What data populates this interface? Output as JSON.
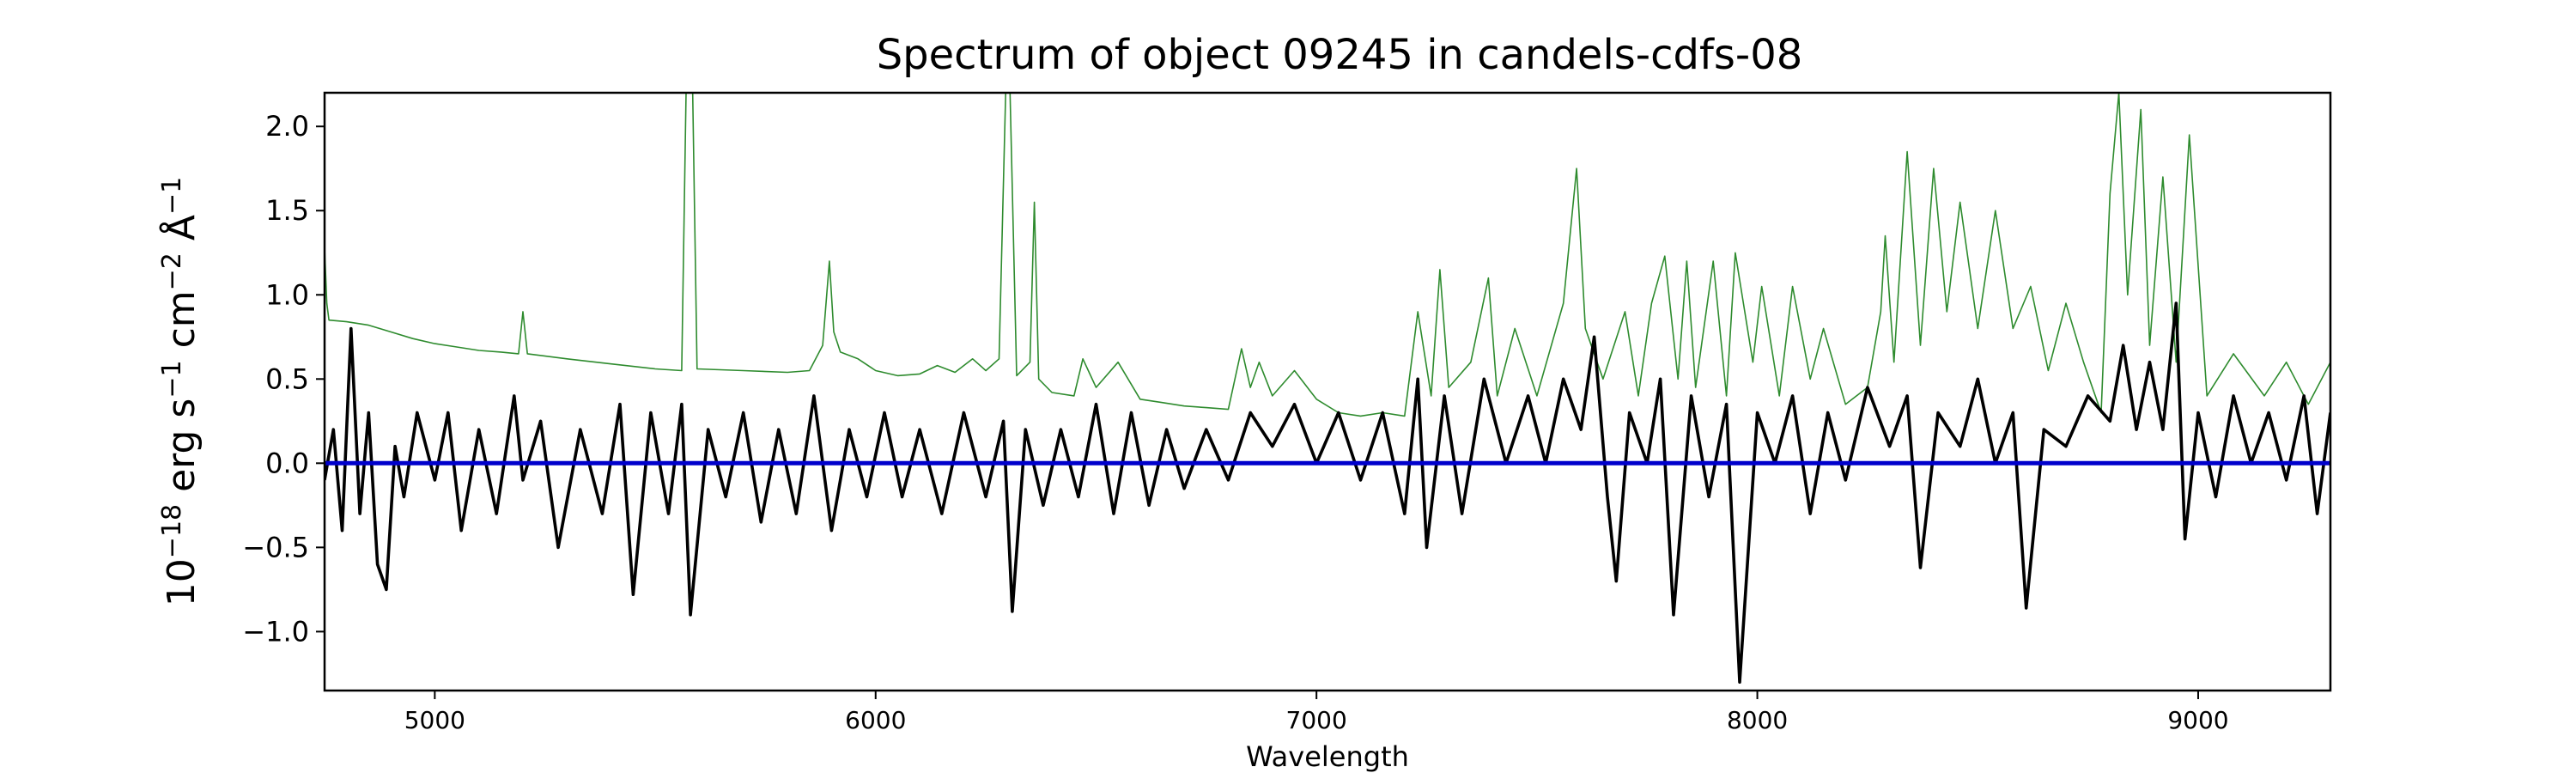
{
  "chart_data": {
    "type": "line",
    "title": "Spectrum of object 09245 in candels-cdfs-08",
    "xlabel": "Wavelength",
    "ylabel_parts": {
      "pre": "10",
      "pre_exp": "−18",
      "u1": " erg s",
      "u1_exp": "−1",
      "u2": " cm",
      "u2_exp": "−2",
      "u3": " Å",
      "u3_exp": "−1"
    },
    "xlim": [
      4750,
      9300
    ],
    "ylim": [
      -1.35,
      2.2
    ],
    "x_ticks": [
      {
        "value": 5000,
        "label": "5000"
      },
      {
        "value": 6000,
        "label": "6000"
      },
      {
        "value": 7000,
        "label": "7000"
      },
      {
        "value": 8000,
        "label": "8000"
      },
      {
        "value": 9000,
        "label": "9000"
      }
    ],
    "y_ticks": [
      {
        "value": -1.0,
        "label": "−1.0"
      },
      {
        "value": -0.5,
        "label": "−0.5"
      },
      {
        "value": 0.0,
        "label": "0.0"
      },
      {
        "value": 0.5,
        "label": "0.5"
      },
      {
        "value": 1.0,
        "label": "1.0"
      },
      {
        "value": 1.5,
        "label": "1.5"
      },
      {
        "value": 2.0,
        "label": "2.0"
      }
    ],
    "grid": false,
    "series": [
      {
        "role": "error",
        "color": "#2e8b2e",
        "points": [
          [
            4750,
            1.28
          ],
          [
            4755,
            0.95
          ],
          [
            4760,
            0.85
          ],
          [
            4800,
            0.84
          ],
          [
            4850,
            0.82
          ],
          [
            4900,
            0.78
          ],
          [
            4950,
            0.74
          ],
          [
            5000,
            0.71
          ],
          [
            5050,
            0.69
          ],
          [
            5100,
            0.67
          ],
          [
            5150,
            0.66
          ],
          [
            5190,
            0.65
          ],
          [
            5200,
            0.9
          ],
          [
            5210,
            0.65
          ],
          [
            5300,
            0.62
          ],
          [
            5400,
            0.59
          ],
          [
            5500,
            0.56
          ],
          [
            5560,
            0.55
          ],
          [
            5570,
            2.2
          ],
          [
            5585,
            2.2
          ],
          [
            5595,
            0.56
          ],
          [
            5700,
            0.55
          ],
          [
            5800,
            0.54
          ],
          [
            5850,
            0.55
          ],
          [
            5880,
            0.7
          ],
          [
            5895,
            1.2
          ],
          [
            5905,
            0.78
          ],
          [
            5920,
            0.66
          ],
          [
            5960,
            0.62
          ],
          [
            6000,
            0.55
          ],
          [
            6050,
            0.52
          ],
          [
            6100,
            0.53
          ],
          [
            6140,
            0.58
          ],
          [
            6180,
            0.54
          ],
          [
            6220,
            0.62
          ],
          [
            6250,
            0.55
          ],
          [
            6280,
            0.62
          ],
          [
            6295,
            2.2
          ],
          [
            6305,
            2.2
          ],
          [
            6320,
            0.52
          ],
          [
            6350,
            0.6
          ],
          [
            6360,
            1.55
          ],
          [
            6370,
            0.5
          ],
          [
            6400,
            0.42
          ],
          [
            6450,
            0.4
          ],
          [
            6470,
            0.62
          ],
          [
            6500,
            0.45
          ],
          [
            6550,
            0.6
          ],
          [
            6600,
            0.38
          ],
          [
            6650,
            0.36
          ],
          [
            6700,
            0.34
          ],
          [
            6750,
            0.33
          ],
          [
            6800,
            0.32
          ],
          [
            6830,
            0.68
          ],
          [
            6850,
            0.45
          ],
          [
            6870,
            0.6
          ],
          [
            6900,
            0.4
          ],
          [
            6950,
            0.55
          ],
          [
            7000,
            0.38
          ],
          [
            7050,
            0.3
          ],
          [
            7100,
            0.28
          ],
          [
            7150,
            0.3
          ],
          [
            7200,
            0.28
          ],
          [
            7230,
            0.9
          ],
          [
            7260,
            0.4
          ],
          [
            7280,
            1.15
          ],
          [
            7300,
            0.45
          ],
          [
            7350,
            0.6
          ],
          [
            7390,
            1.1
          ],
          [
            7410,
            0.4
          ],
          [
            7450,
            0.8
          ],
          [
            7500,
            0.4
          ],
          [
            7560,
            0.95
          ],
          [
            7590,
            1.75
          ],
          [
            7610,
            0.8
          ],
          [
            7650,
            0.5
          ],
          [
            7700,
            0.9
          ],
          [
            7730,
            0.4
          ],
          [
            7760,
            0.95
          ],
          [
            7790,
            1.23
          ],
          [
            7820,
            0.5
          ],
          [
            7840,
            1.2
          ],
          [
            7860,
            0.45
          ],
          [
            7900,
            1.2
          ],
          [
            7930,
            0.4
          ],
          [
            7950,
            1.25
          ],
          [
            7990,
            0.6
          ],
          [
            8010,
            1.05
          ],
          [
            8050,
            0.4
          ],
          [
            8080,
            1.05
          ],
          [
            8120,
            0.5
          ],
          [
            8150,
            0.8
          ],
          [
            8200,
            0.35
          ],
          [
            8250,
            0.45
          ],
          [
            8280,
            0.9
          ],
          [
            8290,
            1.35
          ],
          [
            8310,
            0.6
          ],
          [
            8340,
            1.85
          ],
          [
            8370,
            0.7
          ],
          [
            8400,
            1.75
          ],
          [
            8430,
            0.9
          ],
          [
            8460,
            1.55
          ],
          [
            8500,
            0.8
          ],
          [
            8540,
            1.5
          ],
          [
            8580,
            0.8
          ],
          [
            8620,
            1.05
          ],
          [
            8660,
            0.55
          ],
          [
            8700,
            0.95
          ],
          [
            8740,
            0.6
          ],
          [
            8780,
            0.3
          ],
          [
            8800,
            1.6
          ],
          [
            8820,
            2.2
          ],
          [
            8840,
            1.0
          ],
          [
            8870,
            2.1
          ],
          [
            8890,
            0.7
          ],
          [
            8920,
            1.7
          ],
          [
            8950,
            0.6
          ],
          [
            8980,
            1.95
          ],
          [
            9020,
            0.4
          ],
          [
            9080,
            0.65
          ],
          [
            9150,
            0.4
          ],
          [
            9200,
            0.6
          ],
          [
            9250,
            0.35
          ],
          [
            9300,
            0.6
          ]
        ]
      },
      {
        "role": "flux",
        "color": "#000000",
        "points": [
          [
            4750,
            -0.1
          ],
          [
            4770,
            0.2
          ],
          [
            4790,
            -0.4
          ],
          [
            4810,
            0.8
          ],
          [
            4830,
            -0.3
          ],
          [
            4850,
            0.3
          ],
          [
            4870,
            -0.6
          ],
          [
            4890,
            -0.75
          ],
          [
            4910,
            0.1
          ],
          [
            4930,
            -0.2
          ],
          [
            4960,
            0.3
          ],
          [
            5000,
            -0.1
          ],
          [
            5030,
            0.3
          ],
          [
            5060,
            -0.4
          ],
          [
            5100,
            0.2
          ],
          [
            5140,
            -0.3
          ],
          [
            5180,
            0.4
          ],
          [
            5200,
            -0.1
          ],
          [
            5240,
            0.25
          ],
          [
            5280,
            -0.5
          ],
          [
            5330,
            0.2
          ],
          [
            5380,
            -0.3
          ],
          [
            5420,
            0.35
          ],
          [
            5450,
            -0.78
          ],
          [
            5490,
            0.3
          ],
          [
            5530,
            -0.3
          ],
          [
            5560,
            0.35
          ],
          [
            5580,
            -0.9
          ],
          [
            5620,
            0.2
          ],
          [
            5660,
            -0.2
          ],
          [
            5700,
            0.3
          ],
          [
            5740,
            -0.35
          ],
          [
            5780,
            0.2
          ],
          [
            5820,
            -0.3
          ],
          [
            5860,
            0.4
          ],
          [
            5900,
            -0.4
          ],
          [
            5940,
            0.2
          ],
          [
            5980,
            -0.2
          ],
          [
            6020,
            0.3
          ],
          [
            6060,
            -0.2
          ],
          [
            6100,
            0.2
          ],
          [
            6150,
            -0.3
          ],
          [
            6200,
            0.3
          ],
          [
            6250,
            -0.2
          ],
          [
            6290,
            0.25
          ],
          [
            6310,
            -0.88
          ],
          [
            6340,
            0.2
          ],
          [
            6380,
            -0.25
          ],
          [
            6420,
            0.2
          ],
          [
            6460,
            -0.2
          ],
          [
            6500,
            0.35
          ],
          [
            6540,
            -0.3
          ],
          [
            6580,
            0.3
          ],
          [
            6620,
            -0.25
          ],
          [
            6660,
            0.2
          ],
          [
            6700,
            -0.15
          ],
          [
            6750,
            0.2
          ],
          [
            6800,
            -0.1
          ],
          [
            6850,
            0.3
          ],
          [
            6900,
            0.1
          ],
          [
            6950,
            0.35
          ],
          [
            7000,
            0.0
          ],
          [
            7050,
            0.3
          ],
          [
            7100,
            -0.1
          ],
          [
            7150,
            0.3
          ],
          [
            7200,
            -0.3
          ],
          [
            7230,
            0.5
          ],
          [
            7250,
            -0.5
          ],
          [
            7290,
            0.4
          ],
          [
            7330,
            -0.3
          ],
          [
            7380,
            0.5
          ],
          [
            7430,
            0.0
          ],
          [
            7480,
            0.4
          ],
          [
            7520,
            0.0
          ],
          [
            7560,
            0.5
          ],
          [
            7600,
            0.2
          ],
          [
            7630,
            0.75
          ],
          [
            7660,
            -0.2
          ],
          [
            7680,
            -0.7
          ],
          [
            7710,
            0.3
          ],
          [
            7750,
            0.0
          ],
          [
            7780,
            0.5
          ],
          [
            7810,
            -0.9
          ],
          [
            7850,
            0.4
          ],
          [
            7890,
            -0.2
          ],
          [
            7930,
            0.35
          ],
          [
            7960,
            -1.3
          ],
          [
            8000,
            0.3
          ],
          [
            8040,
            0.0
          ],
          [
            8080,
            0.4
          ],
          [
            8120,
            -0.3
          ],
          [
            8160,
            0.3
          ],
          [
            8200,
            -0.1
          ],
          [
            8250,
            0.45
          ],
          [
            8300,
            0.1
          ],
          [
            8340,
            0.4
          ],
          [
            8370,
            -0.62
          ],
          [
            8410,
            0.3
          ],
          [
            8460,
            0.1
          ],
          [
            8500,
            0.5
          ],
          [
            8540,
            0.0
          ],
          [
            8580,
            0.3
          ],
          [
            8610,
            -0.86
          ],
          [
            8650,
            0.2
          ],
          [
            8700,
            0.1
          ],
          [
            8750,
            0.4
          ],
          [
            8800,
            0.25
          ],
          [
            8830,
            0.7
          ],
          [
            8860,
            0.2
          ],
          [
            8890,
            0.6
          ],
          [
            8920,
            0.2
          ],
          [
            8950,
            0.95
          ],
          [
            8970,
            -0.45
          ],
          [
            9000,
            0.3
          ],
          [
            9040,
            -0.2
          ],
          [
            9080,
            0.4
          ],
          [
            9120,
            0.0
          ],
          [
            9160,
            0.3
          ],
          [
            9200,
            -0.1
          ],
          [
            9240,
            0.4
          ],
          [
            9270,
            -0.3
          ],
          [
            9300,
            0.3
          ]
        ]
      },
      {
        "role": "zero",
        "color": "#0000cc",
        "points": [
          [
            4750,
            0.0
          ],
          [
            9300,
            0.0
          ]
        ]
      }
    ]
  }
}
